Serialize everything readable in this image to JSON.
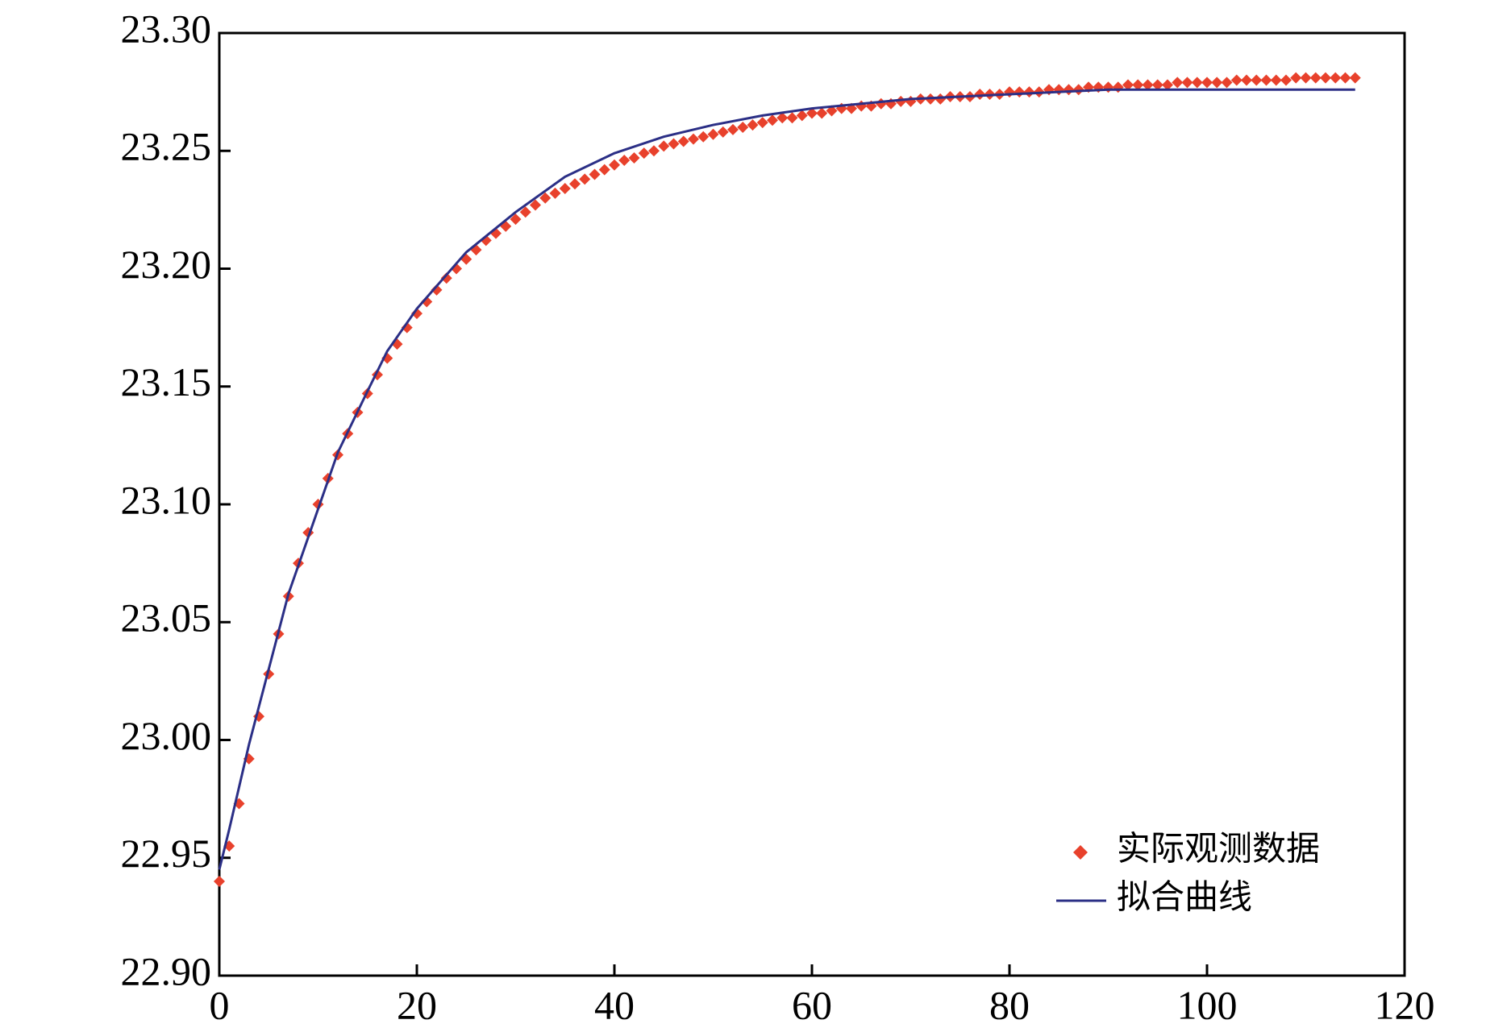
{
  "chart_data": {
    "type": "line",
    "xlim": [
      0,
      120
    ],
    "xticks": [
      0,
      20,
      40,
      60,
      80,
      100,
      120
    ],
    "ylim": [
      22.9,
      23.3
    ],
    "yticks": [
      {
        "value": 22.9,
        "label": "22.90"
      },
      22.95,
      {
        "value": 23.0,
        "label": "23.00"
      },
      23.05,
      {
        "value": 23.1,
        "label": "23.10"
      },
      23.15,
      {
        "value": 23.2,
        "label": "23.20"
      },
      23.25,
      {
        "value": 23.3,
        "label": "23.30"
      }
    ],
    "legend": "lower right",
    "series": [
      {
        "name": "实际观测数据",
        "mode": "markers",
        "color": "#e8412c",
        "x": [
          0,
          1,
          2,
          3,
          4,
          5,
          6,
          7,
          8,
          9,
          10,
          11,
          12,
          13,
          14,
          15,
          16,
          17,
          18,
          19,
          20,
          21,
          22,
          23,
          24,
          25,
          26,
          27,
          28,
          29,
          30,
          31,
          32,
          33,
          34,
          35,
          36,
          37,
          38,
          39,
          40,
          41,
          42,
          43,
          44,
          45,
          46,
          47,
          48,
          49,
          50,
          51,
          52,
          53,
          54,
          55,
          56,
          57,
          58,
          59,
          60,
          61,
          62,
          63,
          64,
          65,
          66,
          67,
          68,
          69,
          70,
          71,
          72,
          73,
          74,
          75,
          76,
          77,
          78,
          79,
          80,
          81,
          82,
          83,
          84,
          85,
          86,
          87,
          88,
          89,
          90,
          91,
          92,
          93,
          94,
          95,
          96,
          97,
          98,
          99,
          100,
          101,
          102,
          103,
          104,
          105,
          106,
          107,
          108,
          109,
          110,
          111,
          112,
          113,
          114,
          115
        ],
        "values": [
          22.94,
          22.955,
          22.973,
          22.992,
          23.01,
          23.028,
          23.045,
          23.061,
          23.075,
          23.088,
          23.1,
          23.111,
          23.121,
          23.13,
          23.139,
          23.147,
          23.155,
          23.162,
          23.168,
          23.175,
          23.181,
          23.186,
          23.191,
          23.196,
          23.2,
          23.204,
          23.208,
          23.212,
          23.215,
          23.218,
          23.221,
          23.224,
          23.227,
          23.23,
          23.232,
          23.234,
          23.236,
          23.238,
          23.24,
          23.242,
          23.244,
          23.246,
          23.247,
          23.249,
          23.25,
          23.252,
          23.253,
          23.254,
          23.255,
          23.256,
          23.257,
          23.258,
          23.259,
          23.26,
          23.261,
          23.262,
          23.263,
          23.264,
          23.264,
          23.265,
          23.266,
          23.266,
          23.267,
          23.268,
          23.268,
          23.269,
          23.269,
          23.27,
          23.27,
          23.271,
          23.271,
          23.272,
          23.272,
          23.272,
          23.273,
          23.273,
          23.273,
          23.274,
          23.274,
          23.274,
          23.275,
          23.275,
          23.275,
          23.275,
          23.276,
          23.276,
          23.276,
          23.276,
          23.277,
          23.277,
          23.277,
          23.277,
          23.278,
          23.278,
          23.278,
          23.278,
          23.278,
          23.279,
          23.279,
          23.279,
          23.279,
          23.279,
          23.279,
          23.28,
          23.28,
          23.28,
          23.28,
          23.28,
          23.28,
          23.281,
          23.281,
          23.281,
          23.281,
          23.281,
          23.281,
          23.281
        ]
      },
      {
        "name": "拟合曲线",
        "mode": "line",
        "color": "#2b2f86",
        "x": [
          0,
          1,
          2,
          3,
          4,
          5,
          7,
          10,
          12,
          15,
          17,
          20,
          25,
          30,
          35,
          40,
          45,
          50,
          55,
          60,
          65,
          70,
          75,
          80,
          85,
          90,
          95,
          100,
          105,
          110,
          115
        ],
        "values": [
          22.945,
          22.962,
          22.98,
          22.998,
          23.014,
          23.03,
          23.062,
          23.098,
          23.122,
          23.148,
          23.165,
          23.183,
          23.207,
          23.224,
          23.239,
          23.249,
          23.256,
          23.261,
          23.265,
          23.268,
          23.27,
          23.272,
          23.273,
          23.274,
          23.275,
          23.276,
          23.276,
          23.276,
          23.276,
          23.276,
          23.276
        ]
      }
    ]
  }
}
